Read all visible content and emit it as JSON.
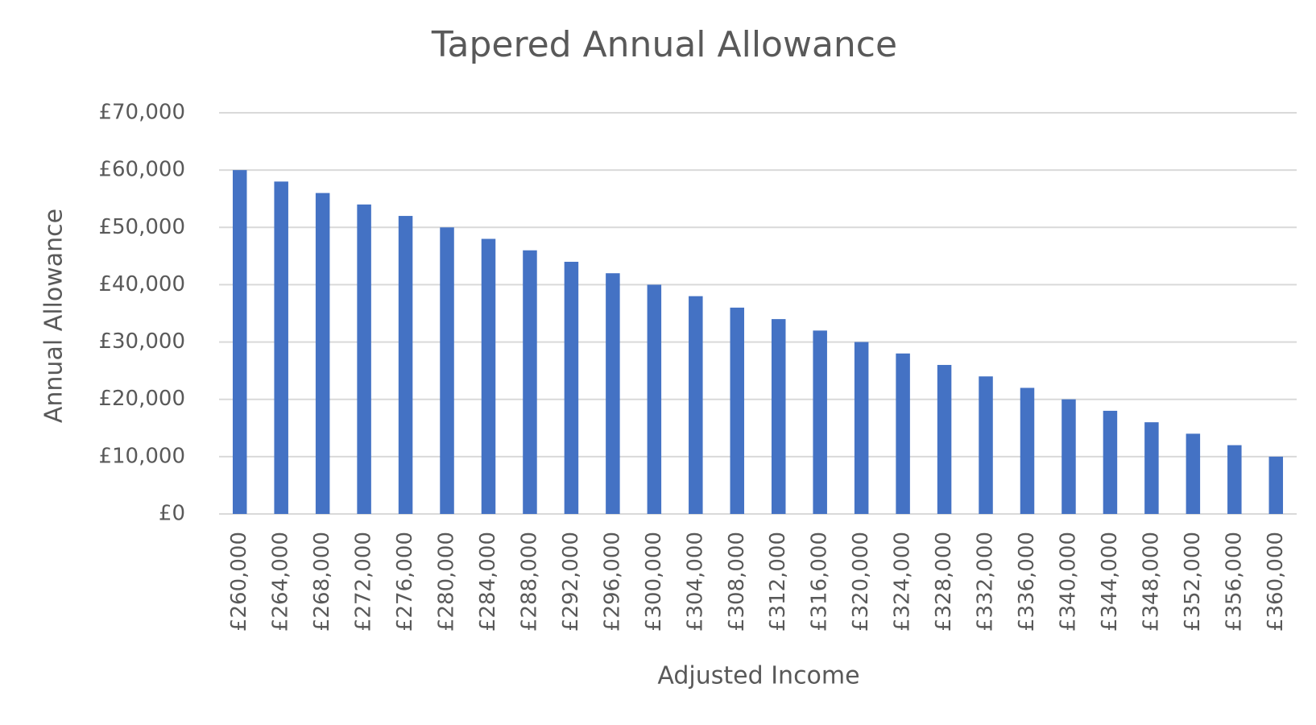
{
  "chart_data": {
    "type": "bar",
    "title": "Tapered Annual Allowance",
    "x_label": "Adjusted Income",
    "y_label": "Annual Allowance",
    "categories": [
      "£260,000",
      "£264,000",
      "£268,000",
      "£272,000",
      "£276,000",
      "£280,000",
      "£284,000",
      "£288,000",
      "£292,000",
      "£296,000",
      "£300,000",
      "£304,000",
      "£308,000",
      "£312,000",
      "£316,000",
      "£320,000",
      "£324,000",
      "£328,000",
      "£332,000",
      "£336,000",
      "£340,000",
      "£344,000",
      "£348,000",
      "£352,000",
      "£356,000",
      "£360,000"
    ],
    "values": [
      60000,
      58000,
      56000,
      54000,
      52000,
      50000,
      48000,
      46000,
      44000,
      42000,
      40000,
      38000,
      36000,
      34000,
      32000,
      30000,
      28000,
      26000,
      24000,
      22000,
      20000,
      18000,
      16000,
      14000,
      12000,
      10000
    ],
    "color": "#4472c4",
    "ylim": [
      0,
      70000
    ],
    "yticks": [
      {
        "value": 0,
        "label": "£0"
      },
      {
        "value": 10000,
        "label": "£10,000"
      },
      {
        "value": 20000,
        "label": "£20,000"
      },
      {
        "value": 30000,
        "label": "£30,000"
      },
      {
        "value": 40000,
        "label": "£40,000"
      },
      {
        "value": 50000,
        "label": "£50,000"
      },
      {
        "value": 60000,
        "label": "£60,000"
      },
      {
        "value": 70000,
        "label": "£70,000"
      }
    ],
    "grid": true
  }
}
